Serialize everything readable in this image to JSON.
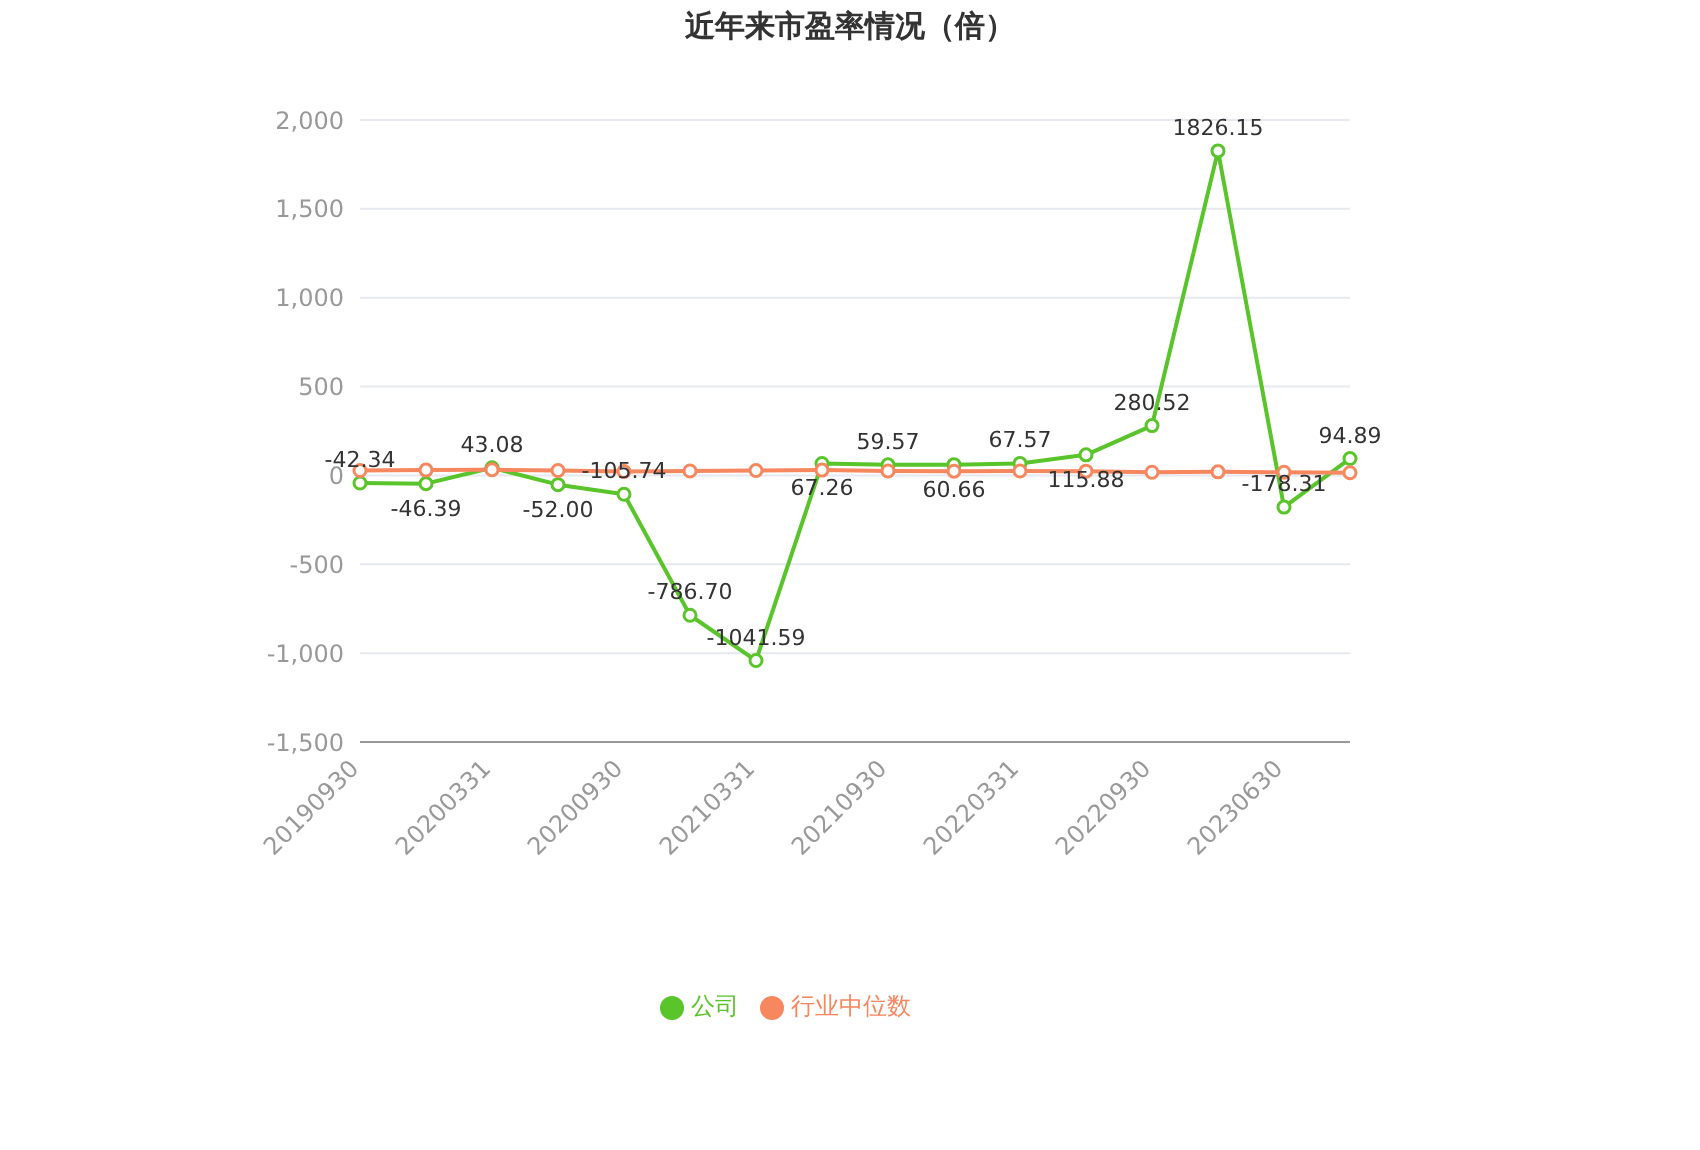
{
  "chart_data": {
    "type": "line",
    "title": "近年来市盈率情况（倍）",
    "categories": [
      "20190930",
      null,
      "20200331",
      null,
      "20200930",
      null,
      "20210331",
      null,
      "20210930",
      null,
      "20220331",
      null,
      "20220930",
      null,
      "20230630",
      null
    ],
    "series": [
      {
        "name": "公司",
        "color": "#5ac42b",
        "values": [
          -42.34,
          -46.39,
          43.08,
          -52.0,
          -105.74,
          -786.7,
          -1041.59,
          67.26,
          59.57,
          60.66,
          67.57,
          115.88,
          280.52,
          1826.15,
          -178.31,
          94.89
        ],
        "value_labels": [
          "-42.34",
          "-46.39",
          "43.08",
          "-52.00",
          "-105.74",
          "-786.70",
          "-1041.59",
          "67.26",
          "59.57",
          "60.66",
          "67.57",
          "115.88",
          "280.52",
          "1826.15",
          "-178.31",
          "94.89"
        ]
      },
      {
        "name": "行业中位数",
        "color": "#f6875f",
        "values": [
          28,
          30,
          32,
          28,
          22,
          25,
          28,
          30,
          25,
          24,
          25,
          24,
          18,
          20,
          18,
          15
        ]
      }
    ],
    "ylim": [
      -1500,
      2000
    ],
    "yticks": [
      {
        "value": -1500,
        "label": "-1,500"
      },
      {
        "value": -1000,
        "label": "-1,000"
      },
      -500,
      0,
      500,
      {
        "value": 1000,
        "label": "1,000"
      },
      {
        "value": 1500,
        "label": "1,500"
      },
      {
        "value": 2000,
        "label": "2,000"
      }
    ],
    "grid": "y",
    "legend": "bottom",
    "marker": "circle",
    "line_style": "solid"
  }
}
